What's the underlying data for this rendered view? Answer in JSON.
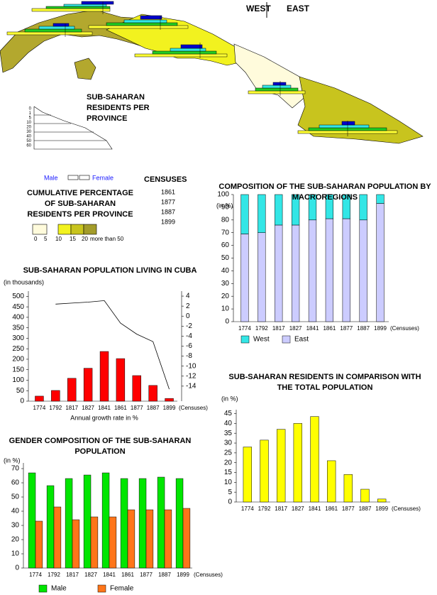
{
  "map": {
    "header_west": "WEST",
    "header_east": "EAST",
    "title": "SUB-SAHARAN RESIDENTS PER PROVINCE",
    "age_scale": [
      "0",
      "1",
      "5",
      "10",
      "20",
      "30",
      "40",
      "50",
      "60"
    ],
    "legend": {
      "male": "Male",
      "female": "Female",
      "censuses_title": "CENSUSES",
      "censuses": [
        "1861",
        "1877",
        "1887",
        "1899"
      ],
      "scale_title": "CUMULATIVE PERCENTAGE OF SUB-SAHARAN RESIDENTS PER PROVINCE",
      "scale_labels": [
        "0",
        "5",
        "10",
        "15",
        "20",
        "more than 50"
      ]
    }
  },
  "chart_data": [
    {
      "type": "bar",
      "title": "SUB-SAHARAN POPULATION LIVING IN CUBA",
      "y_label": "(in thousands)",
      "x_label": "Annual growth rate in  %",
      "x_unit": "(Censuses)",
      "categories": [
        "1774",
        "1792",
        "1817",
        "1827",
        "1841",
        "1861",
        "1877",
        "1887",
        "1899"
      ],
      "series": [
        {
          "color": "#ff0000",
          "values": [
            24,
            51,
            109,
            157,
            237,
            203,
            122,
            75,
            13
          ]
        },
        {
          "type": "line",
          "axis": "y2",
          "color": "#000000",
          "values": [
            null,
            2.4,
            2.6,
            2.8,
            3.1,
            -1.4,
            -3.6,
            -5.1,
            -14.6
          ]
        }
      ],
      "ylim": [
        0,
        525
      ],
      "yticks": [
        0,
        50,
        100,
        150,
        200,
        250,
        300,
        350,
        400,
        450,
        500
      ],
      "y2lim": [
        -17,
        5
      ],
      "y2ticks": [
        4,
        2,
        0,
        -2,
        -4,
        -6,
        -8,
        -10,
        -12,
        -14
      ]
    },
    {
      "type": "stacked_bar",
      "title": "COMPOSITION OF THE SUB-SAHARAN POPULATION BY MACROREGIONS",
      "y_label": "(in %)",
      "x_unit": "(Censuses)",
      "categories": [
        "1774",
        "1792",
        "1817",
        "1827",
        "1841",
        "1861",
        "1877",
        "1887",
        "1899"
      ],
      "series": [
        {
          "name": "West",
          "color": "#33e6e6",
          "values": [
            31,
            30,
            24,
            24,
            20,
            19,
            19,
            20,
            7
          ]
        },
        {
          "name": "East",
          "color": "#ccccff",
          "values": [
            69,
            70,
            76,
            76,
            80,
            81,
            81,
            80,
            93
          ]
        }
      ],
      "ylim": [
        0,
        100
      ],
      "yticks": [
        0,
        10,
        20,
        30,
        40,
        50,
        60,
        70,
        80,
        90,
        100
      ]
    },
    {
      "type": "bar",
      "title": "SUB-SAHARAN RESIDENTS IN COMPARISON WITH THE  TOTAL POPULATION",
      "y_label": "(in %)",
      "x_unit": "(Censuses)",
      "categories": [
        "1774",
        "1792",
        "1817",
        "1827",
        "1841",
        "1861",
        "1877",
        "1887",
        "1899"
      ],
      "series": [
        {
          "color": "#ffff00",
          "values": [
            28,
            31.5,
            37,
            40,
            43.5,
            21,
            14,
            6.5,
            1.5
          ]
        }
      ],
      "ylim": [
        0,
        47
      ],
      "yticks": [
        0,
        5,
        10,
        15,
        20,
        25,
        30,
        35,
        40,
        45
      ]
    },
    {
      "type": "grouped_bar",
      "title": "GENDER COMPOSITION OF THE SUB-SAHARAN POPULATION",
      "y_label": "(in %)",
      "x_unit": "(Censuses)",
      "categories": [
        "1774",
        "1792",
        "1817",
        "1827",
        "1841",
        "1861",
        "1877",
        "1887",
        "1899"
      ],
      "series": [
        {
          "name": "Male",
          "color": "#00e600",
          "values": [
            67,
            58,
            63,
            65.5,
            67,
            63,
            63,
            64,
            63
          ]
        },
        {
          "name": "Female",
          "color": "#ff7519",
          "values": [
            33,
            43,
            34,
            36,
            36,
            41,
            41,
            41,
            42
          ]
        }
      ],
      "ylim": [
        0,
        74
      ],
      "yticks": [
        0,
        10,
        20,
        30,
        40,
        50,
        60,
        70
      ]
    }
  ]
}
